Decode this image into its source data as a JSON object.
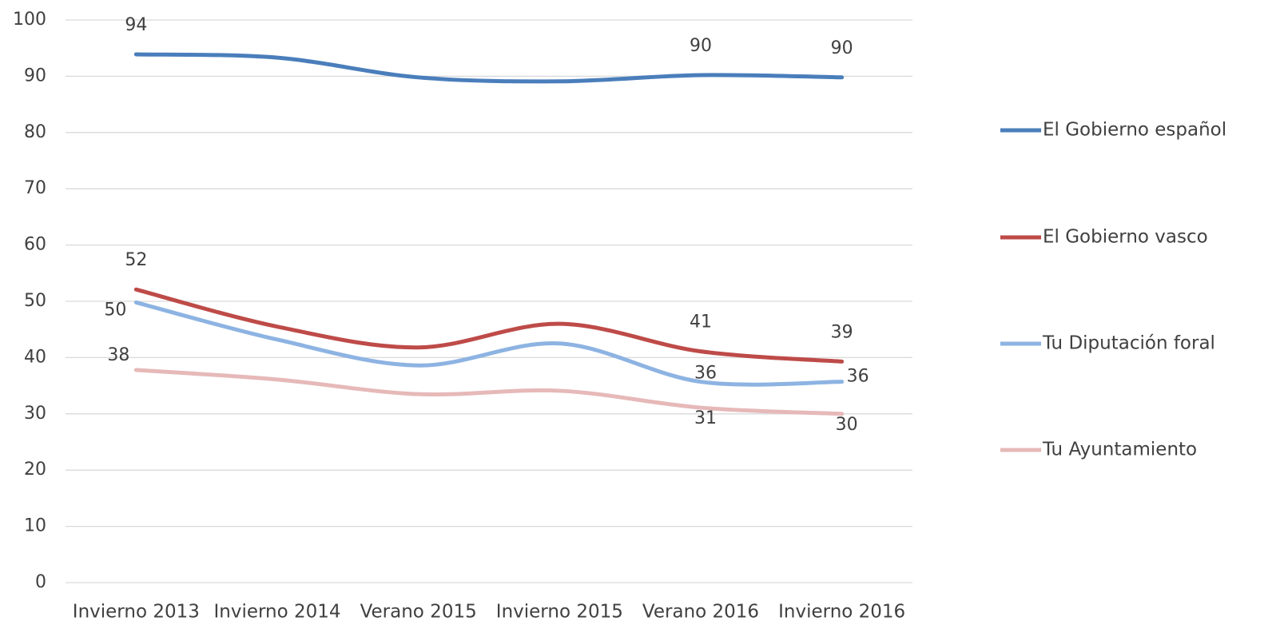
{
  "chart_data": {
    "type": "line",
    "categories": [
      "Invierno 2013",
      "Invierno 2014",
      "Verano 2015",
      "Invierno 2015",
      "Verano 2016",
      "Invierno 2016"
    ],
    "ylim": [
      0,
      100
    ],
    "yticks": [
      0,
      10,
      20,
      30,
      40,
      50,
      60,
      70,
      80,
      90,
      100
    ],
    "grid": true,
    "smooth": true,
    "legend": "right",
    "series": [
      {
        "name": "El Gobierno español",
        "color": "#4a7ebb",
        "values": [
          93.9,
          93.3,
          89.8,
          89.1,
          90.2,
          89.8
        ],
        "value_labels": [
          "94",
          null,
          null,
          null,
          "90",
          "90"
        ]
      },
      {
        "name": "El Gobierno vasco",
        "color": "#be4b48",
        "values": [
          52.1,
          45.5,
          41.8,
          46.0,
          41.1,
          39.3
        ],
        "value_labels": [
          "52",
          null,
          null,
          null,
          "41",
          "39"
        ]
      },
      {
        "name": "Tu Diputación foral",
        "color": "#8db3e2",
        "values": [
          49.8,
          43.2,
          38.6,
          42.5,
          35.7,
          35.7
        ],
        "value_labels": [
          "50",
          null,
          null,
          null,
          "36",
          "36"
        ]
      },
      {
        "name": "Tu Ayuntamiento",
        "color": "#e6b9b8",
        "values": [
          37.8,
          36.1,
          33.5,
          34.1,
          31.1,
          30.0
        ],
        "value_labels": [
          "38",
          null,
          null,
          null,
          "31",
          "30"
        ]
      }
    ]
  }
}
